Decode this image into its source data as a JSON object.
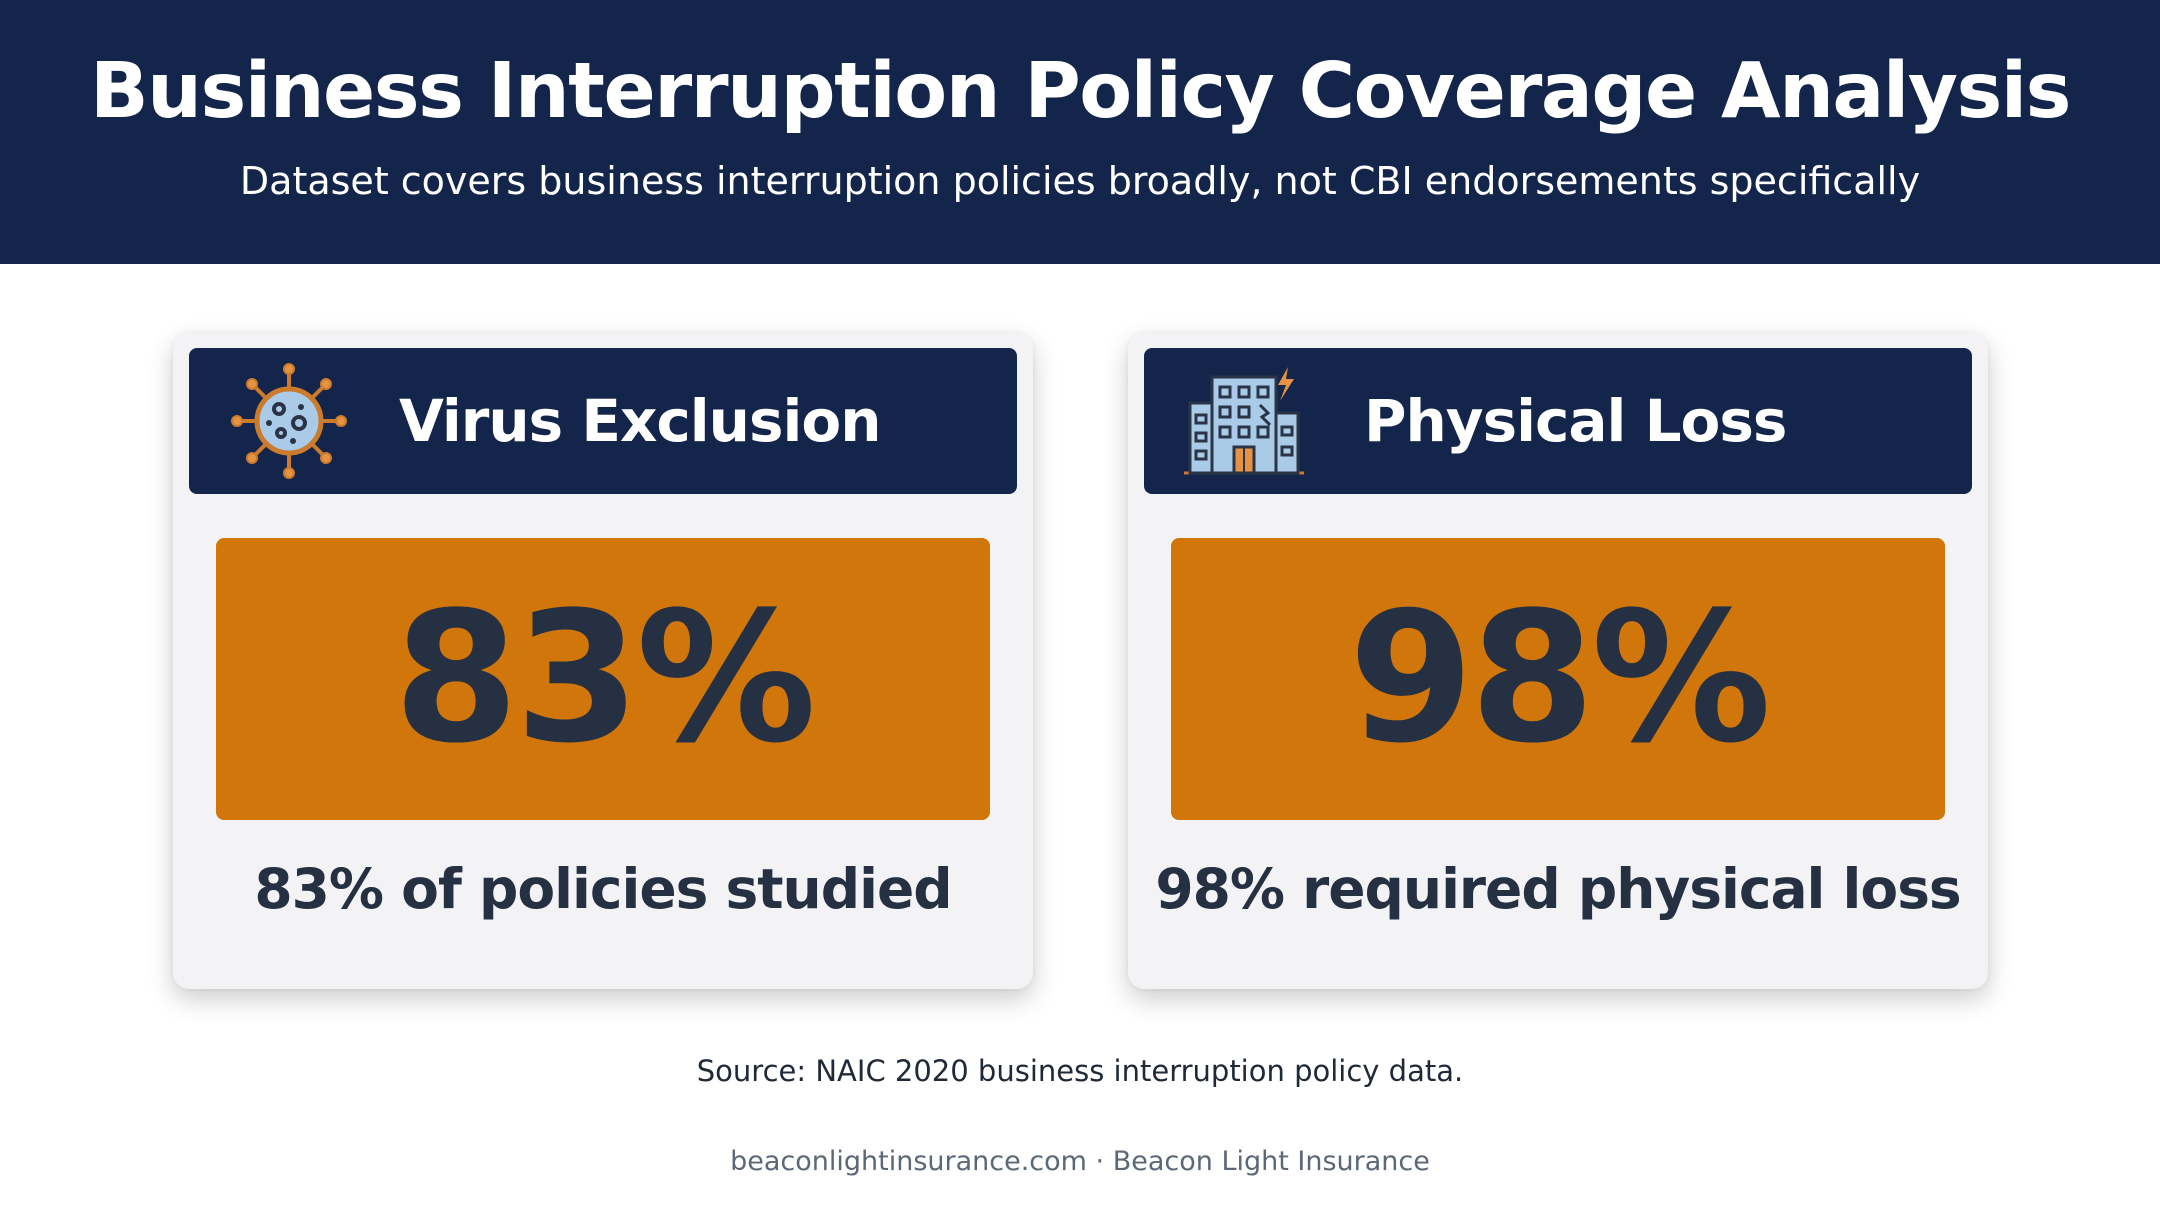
{
  "header": {
    "title": "Business Interruption Policy Coverage Analysis",
    "subtitle": "Dataset covers business interruption policies broadly, not CBI endorsements specifically"
  },
  "cards": [
    {
      "label": "Virus Exclusion",
      "icon": "virus-icon",
      "value": "83%",
      "caption": "83% of policies studied"
    },
    {
      "label": "Physical Loss",
      "icon": "damaged-building-icon",
      "value": "98%",
      "caption": "98% required physical loss"
    }
  ],
  "source": "Source: NAIC 2020 business interruption policy data.",
  "footer": "beaconlightinsurance.com · Beacon Light Insurance",
  "colors": {
    "navy": "#13254a",
    "orange": "#d1760b",
    "card_bg": "#f3f3f5",
    "text_dark": "#253042"
  }
}
